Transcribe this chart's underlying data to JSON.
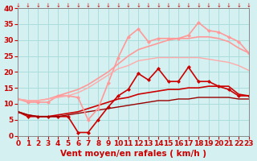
{
  "x": [
    0,
    1,
    2,
    3,
    4,
    5,
    6,
    7,
    8,
    9,
    10,
    11,
    12,
    13,
    14,
    15,
    16,
    17,
    18,
    19,
    20,
    21,
    22,
    23
  ],
  "lines": [
    {
      "label": "line1_dark_red",
      "color": "#cc0000",
      "linewidth": 1.2,
      "marker": "D",
      "markersize": 2,
      "alpha": 1.0,
      "y": [
        7.5,
        6.0,
        6.0,
        6.0,
        6.0,
        6.0,
        1.0,
        1.0,
        5.0,
        9.0,
        12.5,
        14.5,
        19.5,
        17.5,
        21.0,
        17.0,
        17.0,
        21.5,
        17.0,
        17.0,
        15.5,
        14.5,
        12.5,
        12.5
      ]
    },
    {
      "label": "line2_dark_red_smooth",
      "color": "#cc0000",
      "linewidth": 1.2,
      "marker": null,
      "markersize": 0,
      "alpha": 1.0,
      "y": [
        7.5,
        6.5,
        6.0,
        6.0,
        6.5,
        7.0,
        7.5,
        8.5,
        9.5,
        10.5,
        11.5,
        12.0,
        13.0,
        13.5,
        14.0,
        14.5,
        14.5,
        15.0,
        15.0,
        15.5,
        15.5,
        15.5,
        13.0,
        12.5
      ]
    },
    {
      "label": "line3_dark_red_lower",
      "color": "#990000",
      "linewidth": 1.0,
      "marker": null,
      "markersize": 0,
      "alpha": 1.0,
      "y": [
        7.5,
        6.5,
        6.0,
        6.0,
        6.0,
        6.5,
        7.0,
        7.5,
        8.0,
        8.5,
        9.0,
        9.5,
        10.0,
        10.5,
        11.0,
        11.0,
        11.5,
        11.5,
        12.0,
        12.0,
        12.0,
        12.0,
        11.5,
        11.5
      ]
    },
    {
      "label": "line4_light_pink_upper",
      "color": "#ff9999",
      "linewidth": 1.2,
      "marker": "D",
      "markersize": 2,
      "alpha": 1.0,
      "y": [
        11.5,
        10.5,
        10.5,
        10.5,
        12.5,
        12.5,
        12.0,
        5.0,
        8.5,
        16.5,
        24.5,
        31.0,
        33.5,
        29.5,
        30.5,
        30.5,
        30.5,
        31.5,
        35.5,
        33.0,
        32.5,
        31.0,
        29.5,
        26.0
      ]
    },
    {
      "label": "line5_light_pink_smooth",
      "color": "#ff9999",
      "linewidth": 1.2,
      "marker": null,
      "markersize": 0,
      "alpha": 1.0,
      "y": [
        11.5,
        11.0,
        11.0,
        11.5,
        12.5,
        13.5,
        14.5,
        16.0,
        18.0,
        20.0,
        22.5,
        25.0,
        27.0,
        28.0,
        29.0,
        30.0,
        30.5,
        30.5,
        31.0,
        31.0,
        30.5,
        29.5,
        27.5,
        26.0
      ]
    },
    {
      "label": "line6_light_pink_lower",
      "color": "#ffaaaa",
      "linewidth": 1.0,
      "marker": null,
      "markersize": 0,
      "alpha": 1.0,
      "y": [
        11.5,
        11.0,
        11.0,
        11.5,
        12.0,
        12.5,
        13.5,
        15.0,
        17.0,
        19.0,
        21.0,
        22.0,
        23.5,
        24.0,
        24.5,
        24.5,
        24.5,
        24.5,
        24.5,
        24.0,
        23.5,
        23.0,
        22.0,
        20.5
      ]
    }
  ],
  "xlabel": "Vent moyen/en rafales ( km/h )",
  "ylabel": "",
  "title": "",
  "xlim": [
    0,
    23
  ],
  "ylim": [
    0,
    40
  ],
  "xticks": [
    0,
    1,
    2,
    3,
    4,
    5,
    6,
    7,
    8,
    9,
    10,
    11,
    12,
    13,
    14,
    15,
    16,
    17,
    18,
    19,
    20,
    21,
    22,
    23
  ],
  "yticks": [
    0,
    5,
    10,
    15,
    20,
    25,
    30,
    35,
    40
  ],
  "bg_color": "#d4f0f0",
  "grid_color": "#aadddd",
  "tick_color": "#cc0000",
  "label_color": "#cc0000",
  "xlabel_fontsize": 7.5,
  "tick_fontsize": 6.5
}
